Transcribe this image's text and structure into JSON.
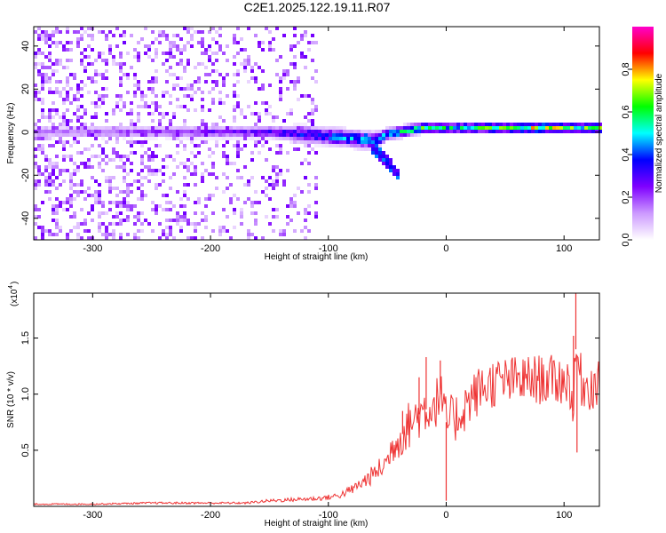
{
  "title": "C2E1.2025.122.19.11.R07",
  "chart_data": [
    {
      "type": "heatmap",
      "xlabel": "Height of straight line (km)",
      "ylabel": "Frequency (Hz)",
      "xlim": [
        -350,
        130
      ],
      "ylim": [
        -50,
        49
      ],
      "xticks": [
        -300,
        -200,
        -100,
        0,
        100
      ],
      "xtick_labels": [
        "-300",
        "-200",
        "-100",
        "0",
        "100"
      ],
      "yticks": [
        -40,
        -20,
        0,
        20,
        40
      ],
      "ytick_labels": [
        "-40",
        "-20",
        "0",
        "20",
        "40"
      ],
      "colorbar": {
        "label": "Normalized spectral amplitude",
        "range": [
          0,
          1
        ],
        "ticks": [
          0.0,
          0.2,
          0.4,
          0.6,
          0.8
        ],
        "tick_labels": [
          "0.0",
          "0.2",
          "0.4",
          "0.6",
          "0.8"
        ],
        "colormap": [
          "#ffffff",
          "#cc99ff",
          "#7f00ff",
          "#0000ff",
          "#00ffff",
          "#00ff00",
          "#ffff00",
          "#ff0000",
          "#ff00cc"
        ]
      },
      "band": {
        "x": [
          -350,
          -260,
          -200,
          -150,
          -120,
          -100,
          -80,
          -60,
          -50,
          -40,
          -30,
          -20,
          0,
          40,
          80,
          100,
          130
        ],
        "center_hz": [
          0,
          0,
          0,
          0,
          -1,
          -2,
          -3,
          -4,
          -1,
          0,
          1,
          2,
          2,
          2,
          2,
          2,
          2
        ],
        "halfwidth_hz": [
          2,
          2,
          2,
          2,
          3,
          3,
          3,
          3,
          2,
          2,
          2,
          2,
          2,
          2,
          2,
          2,
          2
        ],
        "amplitude": [
          0.15,
          0.2,
          0.25,
          0.3,
          0.35,
          0.4,
          0.45,
          0.45,
          0.5,
          0.55,
          0.6,
          0.6,
          0.55,
          0.6,
          0.7,
          0.65,
          0.6
        ]
      },
      "noise": {
        "x_end": -110,
        "density": 0.9
      },
      "spur": {
        "x": [
          -70,
          -40
        ],
        "y": [
          -2,
          -20
        ]
      }
    },
    {
      "type": "line",
      "xlabel": "Height of straight line (km)",
      "ylabel": "SNR (10 * v/v)",
      "yscale_label": "(x10",
      "yscale_exp": "4",
      "yscale_close": ")",
      "xlim": [
        -350,
        130
      ],
      "ylim": [
        0,
        1.9
      ],
      "xticks": [
        -300,
        -200,
        -100,
        0,
        100
      ],
      "xtick_labels": [
        "-300",
        "-200",
        "-100",
        "0",
        "100"
      ],
      "yticks": [
        0.5,
        1.0,
        1.5
      ],
      "ytick_labels": [
        "0.5",
        "1.0",
        "1.5"
      ],
      "color": "#ee3333",
      "series": [
        {
          "x": [
            -350,
            -300,
            -250,
            -200,
            -170,
            -150,
            -130,
            -110,
            -100,
            -90,
            -80,
            -70,
            -60,
            -50,
            -45,
            -40,
            -30,
            -20,
            -10,
            -5,
            0,
            10,
            20,
            30,
            40,
            60,
            80,
            100,
            105,
            108,
            110,
            115,
            120,
            130
          ],
          "y": [
            0.02,
            0.02,
            0.03,
            0.03,
            0.03,
            0.05,
            0.06,
            0.07,
            0.08,
            0.1,
            0.15,
            0.22,
            0.3,
            0.4,
            0.55,
            0.6,
            0.75,
            0.85,
            0.9,
            1.0,
            0.75,
            0.8,
            0.95,
            1.05,
            1.1,
            1.12,
            1.13,
            1.12,
            1.1,
            0.85,
            1.4,
            1.1,
            1.08,
            1.07
          ]
        }
      ],
      "spikes": [
        {
          "x": -37,
          "y": 0.85
        },
        {
          "x": -23,
          "y": 1.15
        },
        {
          "x": -17,
          "y": 1.33
        },
        {
          "x": -5,
          "y": 1.3
        },
        {
          "x": 0,
          "y": 0.05
        },
        {
          "x": 108,
          "y": 1.52
        },
        {
          "x": 110,
          "y": 1.9
        },
        {
          "x": 111,
          "y": 0.48
        }
      ]
    }
  ]
}
